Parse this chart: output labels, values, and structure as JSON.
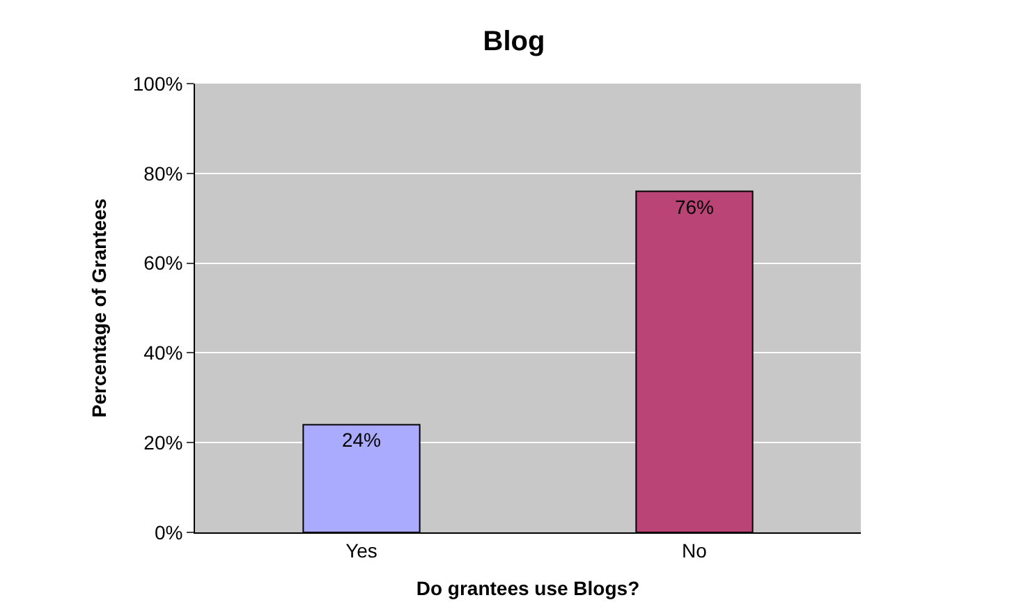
{
  "chart_data": {
    "type": "bar",
    "title": "Blog",
    "xlabel": "Do grantees use Blogs?",
    "ylabel": "Percentage of Grantees",
    "categories": [
      "Yes",
      "No"
    ],
    "values": [
      24,
      76
    ],
    "colors": [
      "#aaaaff",
      "#bb4477"
    ],
    "value_labels": [
      "24%",
      "76%"
    ],
    "ylim": [
      0,
      100
    ],
    "yticks": [
      {
        "value": 0,
        "label": "0%"
      },
      {
        "value": 20,
        "label": "20%"
      },
      {
        "value": 40,
        "label": "40%"
      },
      {
        "value": 60,
        "label": "60%"
      },
      {
        "value": 80,
        "label": "80%"
      },
      {
        "value": 100,
        "label": "100%"
      }
    ],
    "grid": "y"
  }
}
